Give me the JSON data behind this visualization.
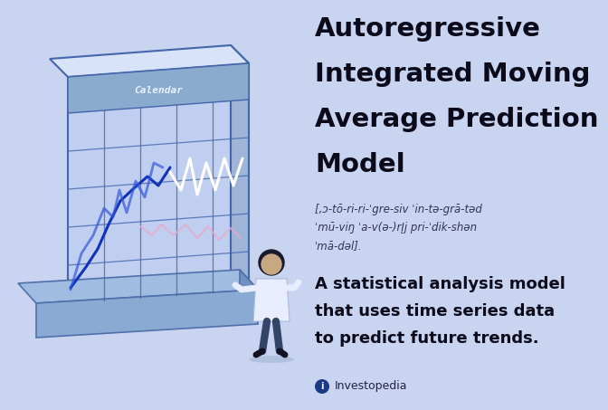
{
  "bg_color": "#c8d4f0",
  "title_lines": [
    "Autoregressive",
    "Integrated Moving",
    "Average Prediction",
    "Model"
  ],
  "phonetic_lines": [
    "[,ɔ-tō-ri-ri-ˈgre-siv ˈin-tə-grā-təd",
    "ˈmū-viŋ ˈa-v(ə-)rĮj pri-ˈdik-shən",
    "ˈmā-dəl]."
  ],
  "description_lines": [
    "A statistical analysis model",
    "that uses time series data",
    "to predict future trends."
  ],
  "investopedia_text": "Investopedia",
  "calendar_label": "Calendar",
  "title_color": "#0a0a1a",
  "phonetic_color": "#333355",
  "desc_color": "#0a0a1a",
  "cal_front_color": "#c0cef0",
  "cal_top_color": "#d8e2f8",
  "cal_right_color": "#a0b4d8",
  "cal_left_color": "#8aaace",
  "cal_bottom_color": "#8aaace",
  "cal_edge_color": "#4466aa",
  "cal_header_color": "#8aaace",
  "cal_header_text": "#e8f0ff",
  "cal_grid_color": "#4466aa",
  "line_blue1": "#1133bb",
  "line_blue2": "#3355dd",
  "line_white": "#ffffff",
  "line_pink": "#e8aacc",
  "person_coat": "#e8eeff",
  "person_hair": "#1a1a2e",
  "person_skin": "#c8a882",
  "person_pants": "#334466",
  "base_color": "#7090cc",
  "base_edge": "#5070aa"
}
